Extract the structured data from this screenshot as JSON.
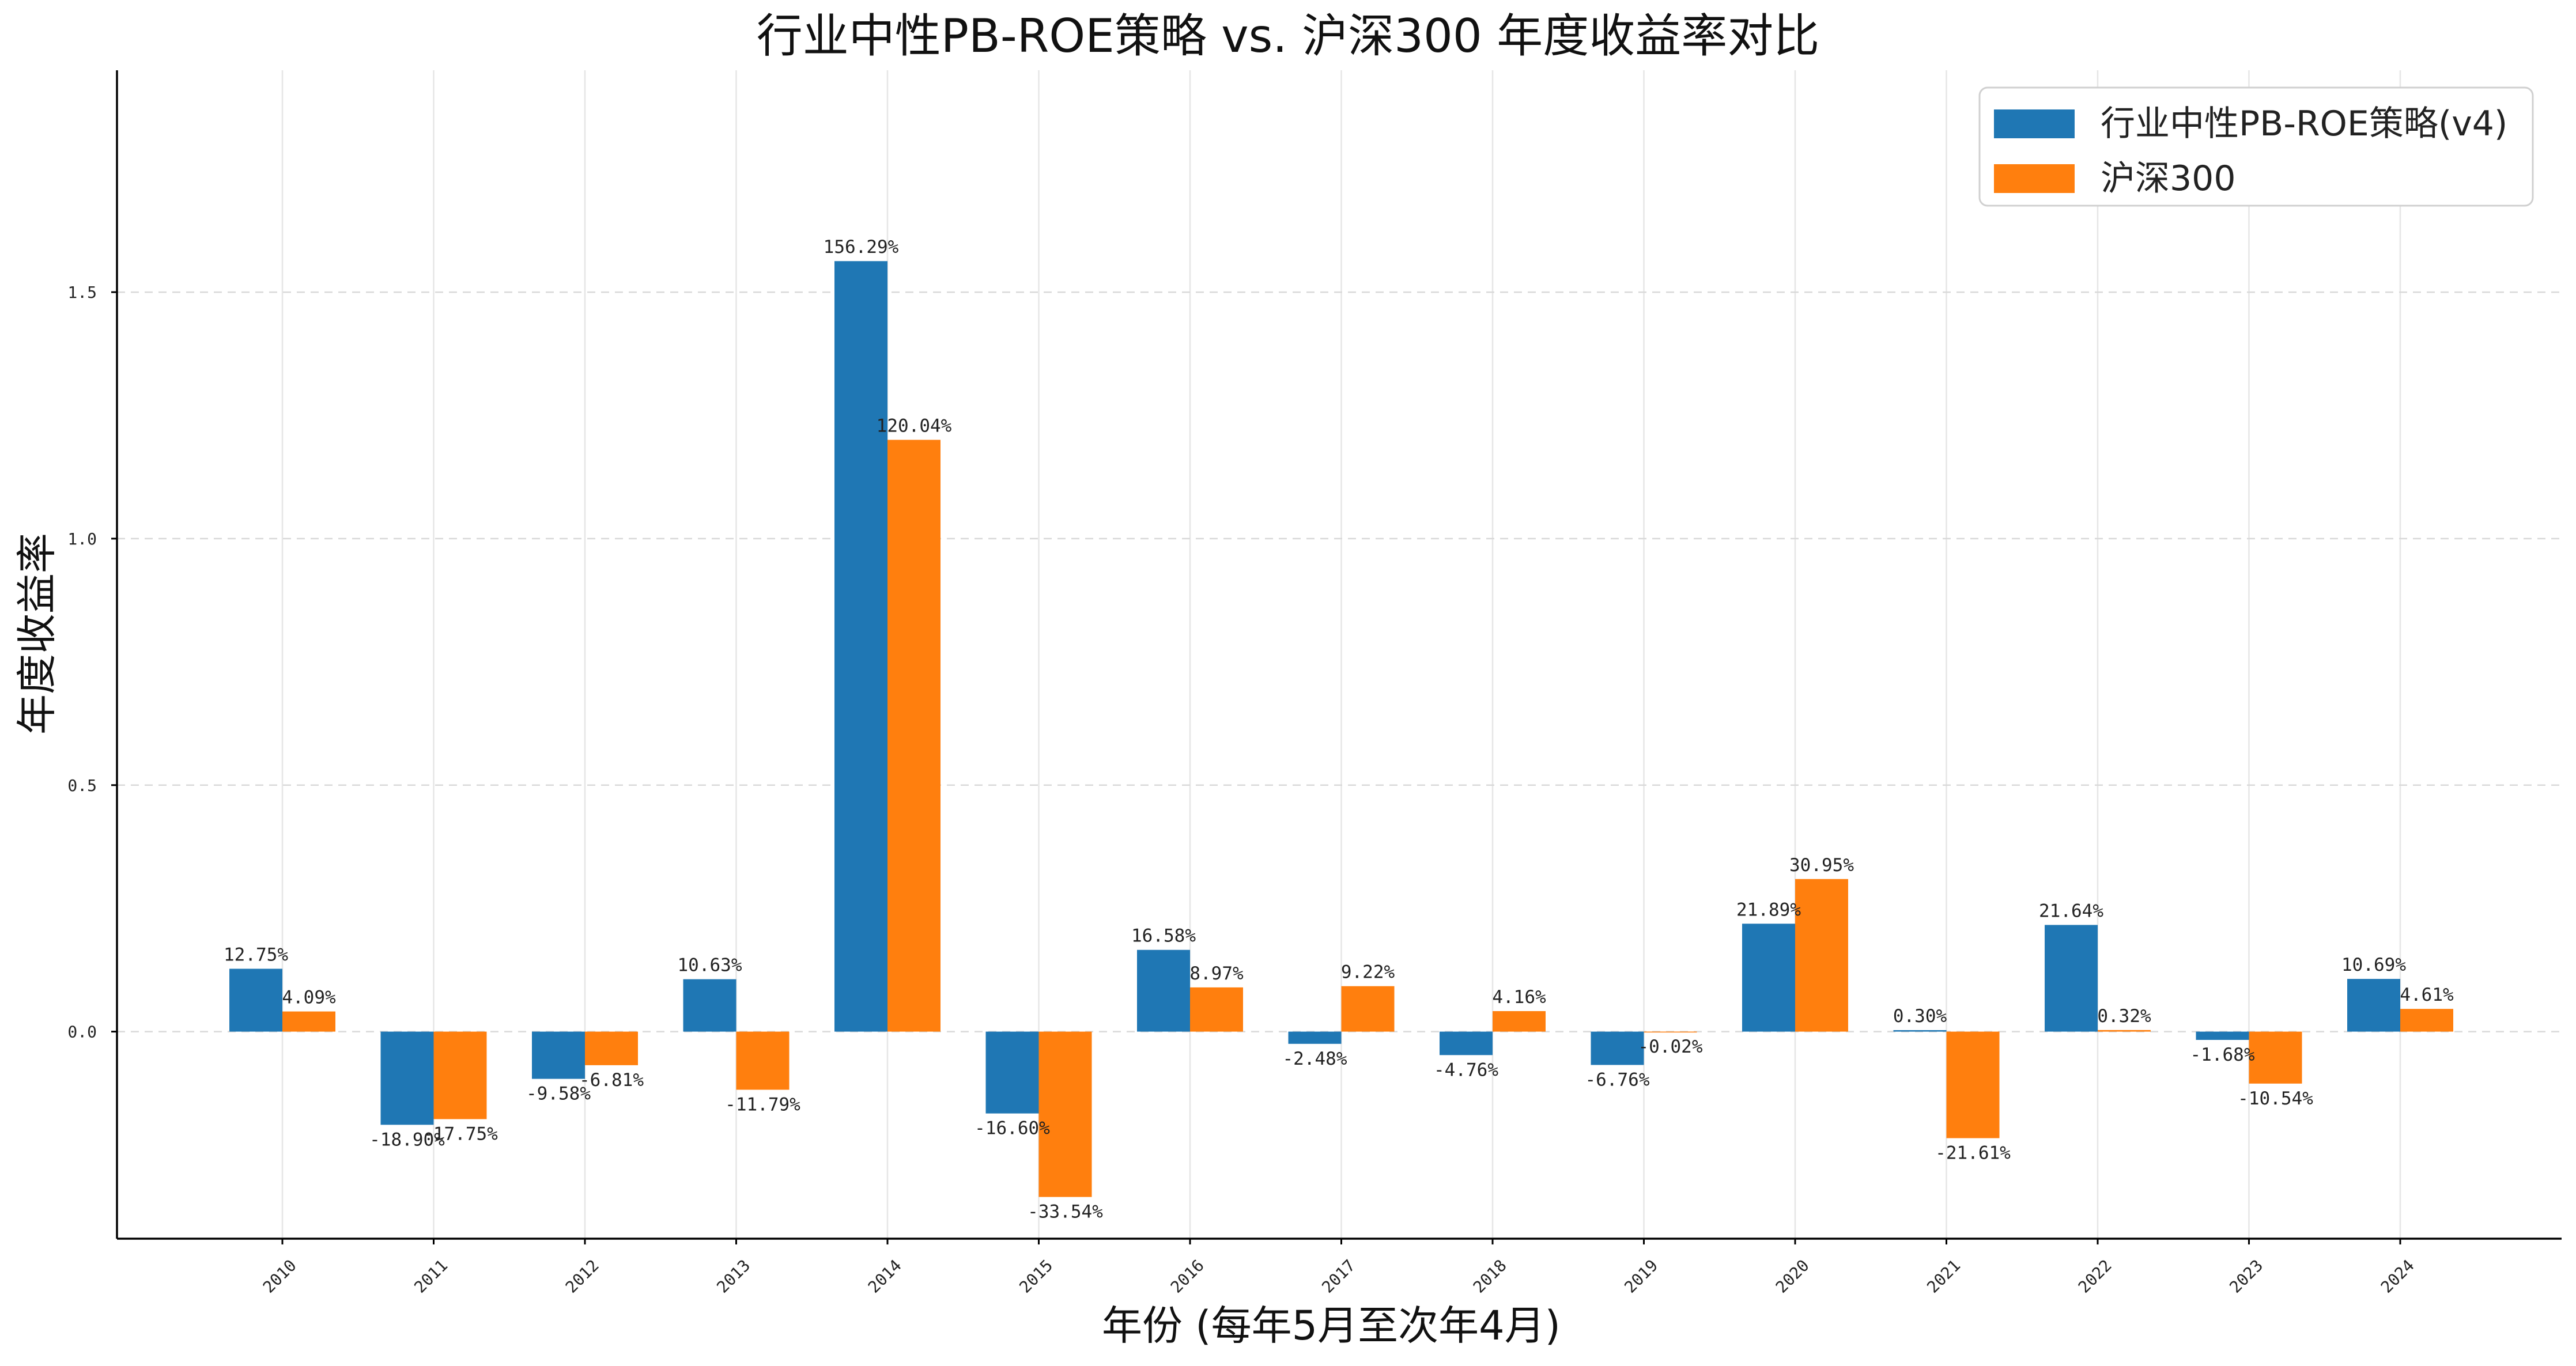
{
  "chart_data": {
    "type": "bar",
    "title": "行业中性PB-ROE策略 vs. 沪深300 年度收益率对比",
    "xlabel": "年份 (每年5月至次年4月)",
    "ylabel": "年度收益率",
    "categories": [
      "2010",
      "2011",
      "2012",
      "2013",
      "2014",
      "2015",
      "2016",
      "2017",
      "2018",
      "2019",
      "2020",
      "2021",
      "2022",
      "2023",
      "2024"
    ],
    "ylim": [
      -0.42,
      1.95
    ],
    "yticks": [
      0.0,
      0.5,
      1.0,
      1.5
    ],
    "ytick_labels": [
      "0.0",
      "0.5",
      "1.0",
      "1.5"
    ],
    "grid": true,
    "legend_position": "top-right",
    "series": [
      {
        "name": "行业中性PB-ROE策略(v4)",
        "color": "#1f77b4",
        "values": [
          0.1275,
          -0.189,
          -0.0958,
          0.1063,
          1.5629,
          -0.166,
          0.1658,
          -0.0248,
          -0.0476,
          -0.0676,
          0.2189,
          0.003,
          0.2164,
          -0.0168,
          0.1069
        ],
        "labels": [
          "12.75%",
          "-18.90%",
          "-9.58%",
          "10.63%",
          "156.29%",
          "-16.60%",
          "16.58%",
          "-2.48%",
          "-4.76%",
          "-6.76%",
          "21.89%",
          "0.30%",
          "21.64%",
          "-1.68%",
          "10.69%"
        ]
      },
      {
        "name": "沪深300",
        "color": "#ff7f0e",
        "values": [
          0.0409,
          -0.1775,
          -0.0681,
          -0.1179,
          1.2004,
          -0.3354,
          0.0897,
          0.0922,
          0.0416,
          -0.0002,
          0.3095,
          -0.2161,
          0.0032,
          -0.1054,
          0.0461
        ],
        "labels": [
          "4.09%",
          "-17.75%",
          "-6.81%",
          "-11.79%",
          "120.04%",
          "-33.54%",
          "8.97%",
          "9.22%",
          "4.16%",
          "-0.02%",
          "30.95%",
          "-21.61%",
          "0.32%",
          "-10.54%",
          "4.61%"
        ]
      }
    ]
  }
}
